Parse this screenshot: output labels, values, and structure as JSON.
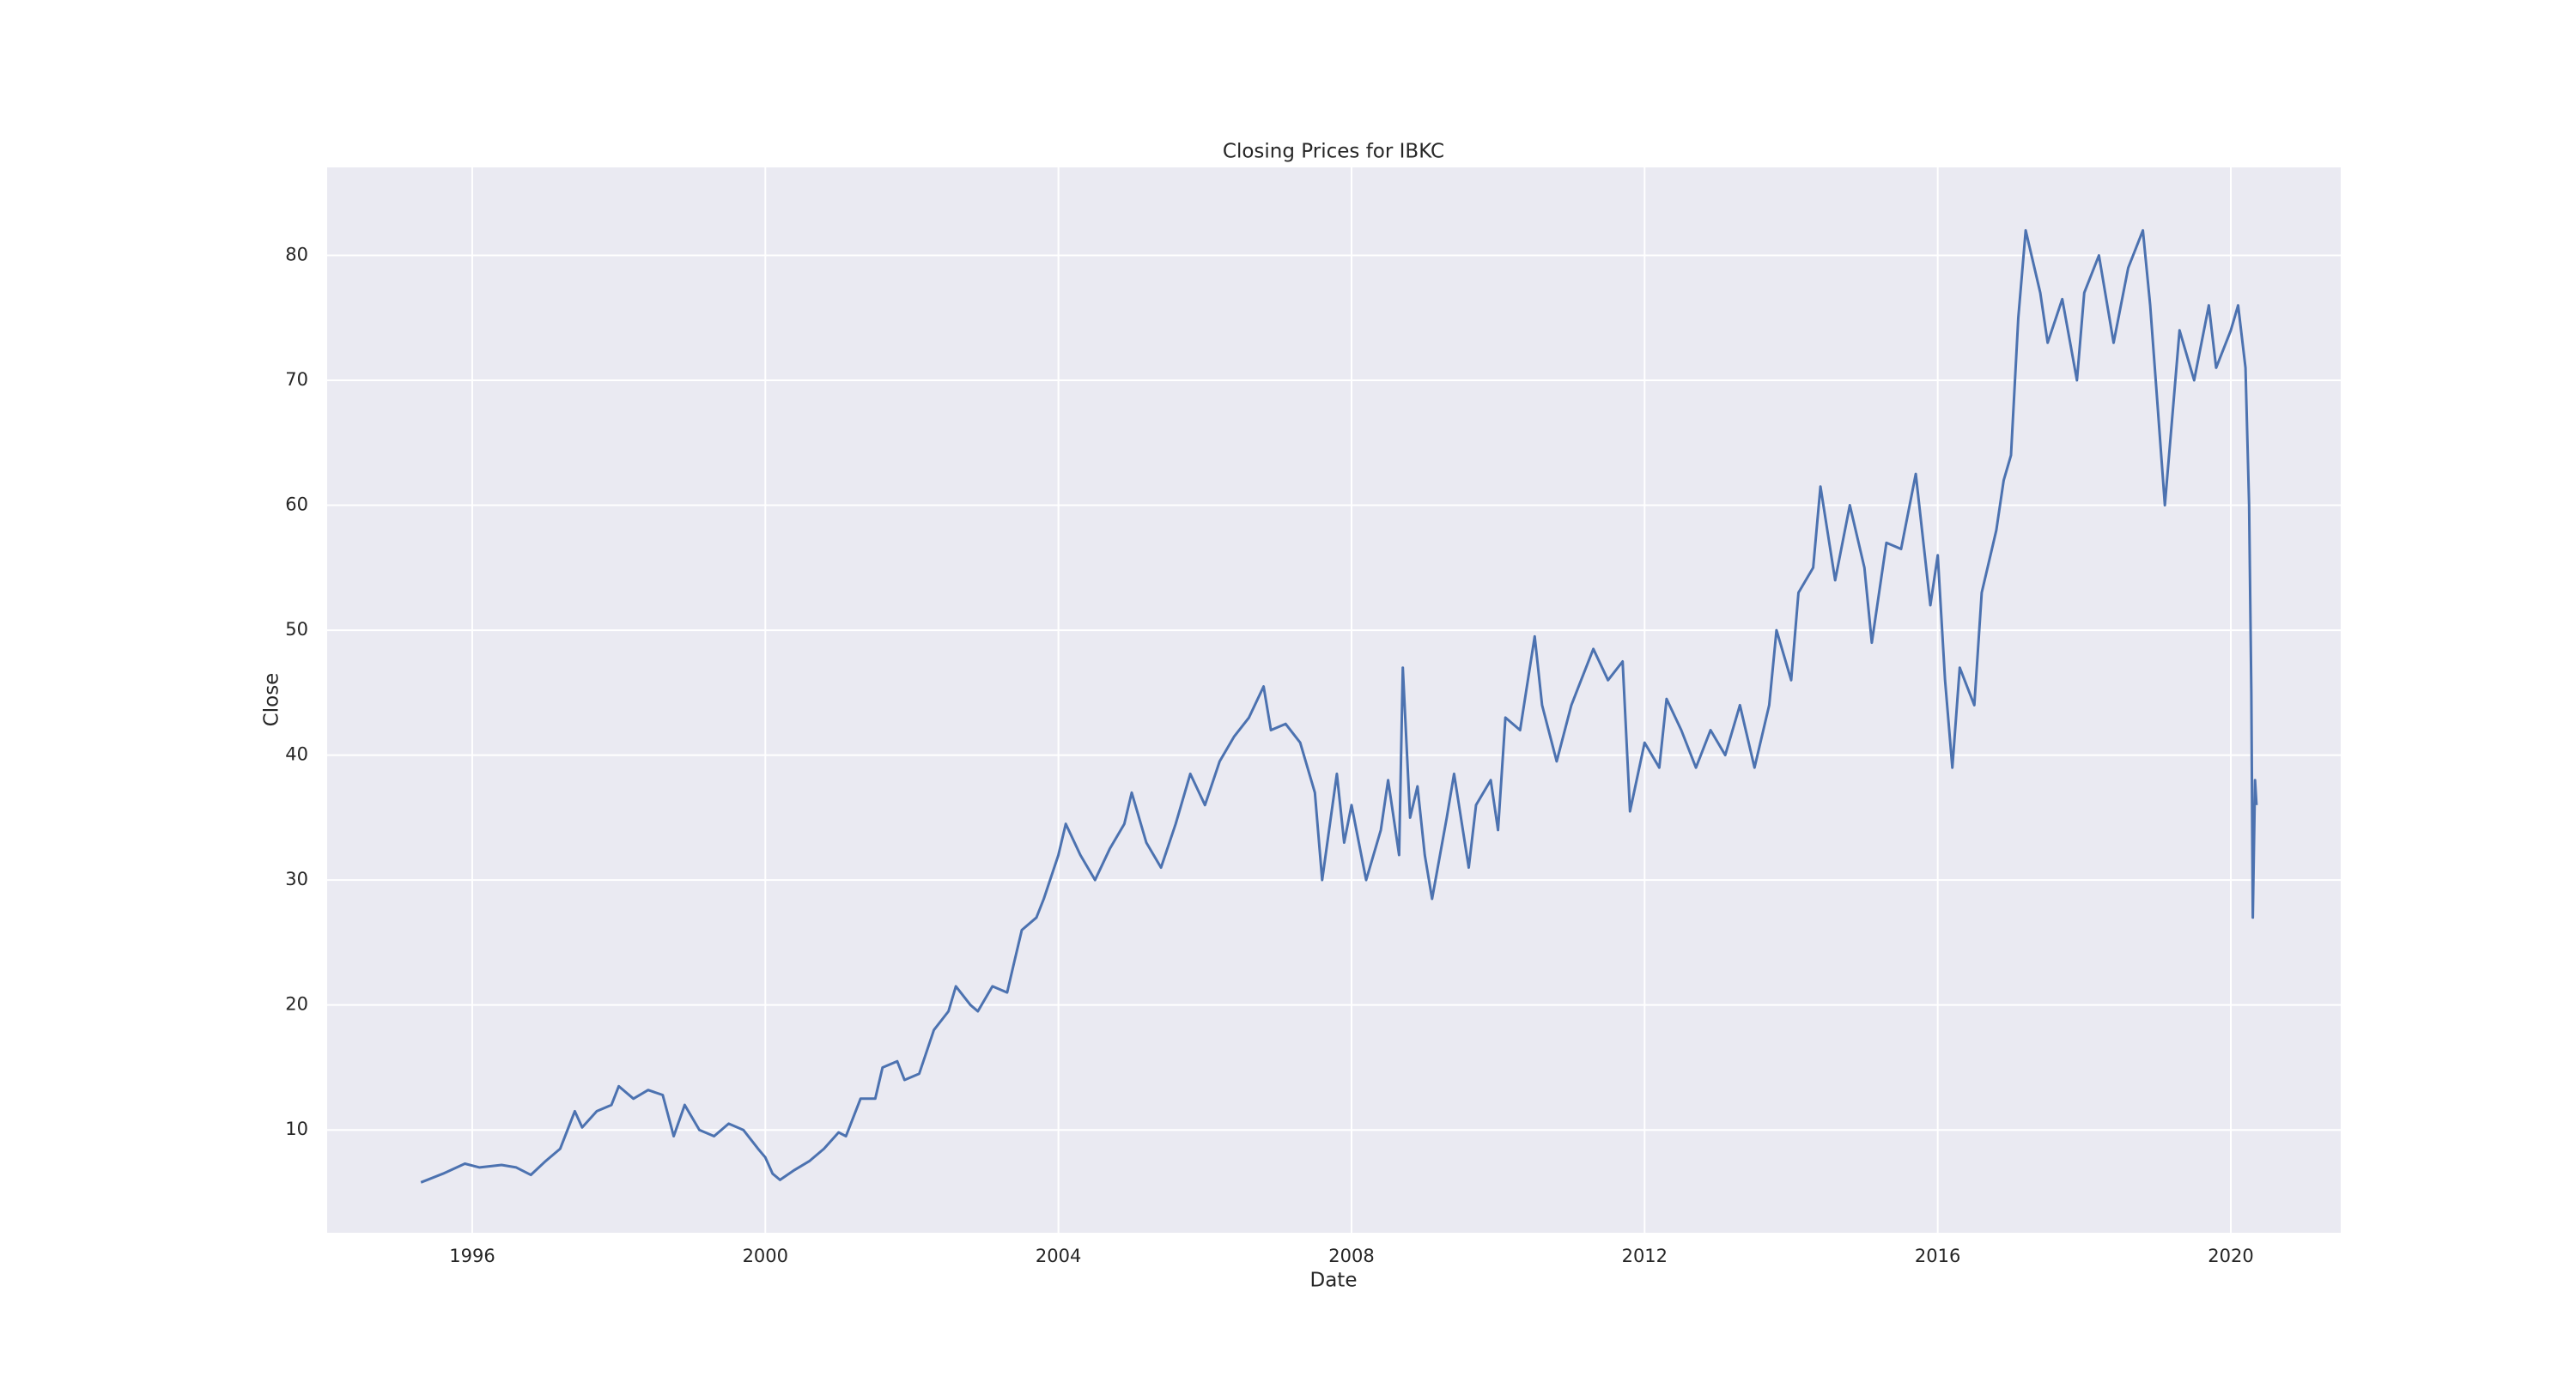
{
  "chart_data": {
    "type": "line",
    "title": "Closing Prices for IBKC",
    "x_label": "Date",
    "y_label": "Close",
    "x": [
      1995.3,
      1995.6,
      1995.9,
      1996.1,
      1996.4,
      1996.6,
      1996.8,
      1997.0,
      1997.2,
      1997.4,
      1997.5,
      1997.7,
      1997.9,
      1998.0,
      1998.2,
      1998.4,
      1998.6,
      1998.75,
      1998.9,
      1999.1,
      1999.3,
      1999.5,
      1999.7,
      1999.9,
      2000.0,
      2000.1,
      2000.2,
      2000.4,
      2000.6,
      2000.8,
      2001.0,
      2001.1,
      2001.3,
      2001.5,
      2001.6,
      2001.8,
      2001.9,
      2002.1,
      2002.3,
      2002.5,
      2002.6,
      2002.8,
      2002.9,
      2003.1,
      2003.3,
      2003.4,
      2003.5,
      2003.7,
      2003.8,
      2004.0,
      2004.1,
      2004.3,
      2004.5,
      2004.7,
      2004.9,
      2005.0,
      2005.2,
      2005.4,
      2005.6,
      2005.8,
      2006.0,
      2006.2,
      2006.4,
      2006.6,
      2006.8,
      2006.9,
      2007.1,
      2007.3,
      2007.5,
      2007.6,
      2007.8,
      2007.9,
      2008.0,
      2008.2,
      2008.4,
      2008.5,
      2008.65,
      2008.7,
      2008.8,
      2008.9,
      2009.0,
      2009.1,
      2009.3,
      2009.4,
      2009.6,
      2009.7,
      2009.9,
      2010.0,
      2010.1,
      2010.3,
      2010.5,
      2010.6,
      2010.8,
      2011.0,
      2011.1,
      2011.3,
      2011.5,
      2011.7,
      2011.8,
      2012.0,
      2012.2,
      2012.3,
      2012.5,
      2012.7,
      2012.9,
      2013.1,
      2013.3,
      2013.5,
      2013.7,
      2013.8,
      2014.0,
      2014.1,
      2014.3,
      2014.4,
      2014.6,
      2014.8,
      2015.0,
      2015.1,
      2015.3,
      2015.5,
      2015.7,
      2015.9,
      2016.0,
      2016.1,
      2016.2,
      2016.3,
      2016.5,
      2016.6,
      2016.8,
      2016.9,
      2017.0,
      2017.1,
      2017.2,
      2017.4,
      2017.5,
      2017.7,
      2017.9,
      2018.0,
      2018.2,
      2018.4,
      2018.6,
      2018.8,
      2018.9,
      2019.0,
      2019.1,
      2019.3,
      2019.5,
      2019.7,
      2019.8,
      2020.0,
      2020.1,
      2020.2,
      2020.25,
      2020.28,
      2020.3,
      2020.33,
      2020.35
    ],
    "values": [
      5.8,
      6.5,
      7.3,
      7.0,
      7.2,
      7.0,
      6.4,
      7.5,
      8.5,
      11.5,
      10.2,
      11.5,
      12.0,
      13.5,
      12.5,
      13.2,
      12.8,
      9.5,
      12.0,
      10.0,
      9.5,
      10.5,
      10.0,
      8.5,
      7.8,
      6.5,
      6.0,
      6.8,
      7.5,
      8.5,
      9.8,
      9.5,
      12.5,
      12.5,
      15.0,
      15.5,
      14.0,
      14.5,
      18.0,
      19.5,
      21.5,
      20.0,
      19.5,
      21.5,
      21.0,
      23.5,
      26.0,
      27.0,
      28.5,
      32.0,
      34.5,
      32.0,
      30.0,
      32.5,
      34.5,
      37.0,
      33.0,
      31.0,
      34.5,
      38.5,
      36.0,
      39.5,
      41.5,
      43.0,
      45.5,
      42.0,
      42.5,
      41.0,
      37.0,
      30.0,
      38.5,
      33.0,
      36.0,
      30.0,
      34.0,
      38.0,
      32.0,
      47.0,
      35.0,
      37.5,
      32.0,
      28.5,
      35.0,
      38.5,
      31.0,
      36.0,
      38.0,
      34.0,
      43.0,
      42.0,
      49.5,
      44.0,
      39.5,
      44.0,
      45.5,
      48.5,
      46.0,
      47.5,
      35.5,
      41.0,
      39.0,
      44.5,
      42.0,
      39.0,
      42.0,
      40.0,
      44.0,
      39.0,
      44.0,
      50.0,
      46.0,
      53.0,
      55.0,
      61.5,
      54.0,
      60.0,
      55.0,
      49.0,
      57.0,
      56.5,
      62.5,
      52.0,
      56.0,
      46.0,
      39.0,
      47.0,
      44.0,
      53.0,
      58.0,
      62.0,
      64.0,
      75.0,
      82.0,
      77.0,
      73.0,
      76.5,
      70.0,
      77.0,
      80.0,
      73.0,
      79.0,
      82.0,
      76.0,
      68.0,
      60.0,
      74.0,
      70.0,
      76.0,
      71.0,
      74.0,
      76.0,
      71.0,
      60.0,
      45.0,
      27.0,
      38.0,
      36.0
    ],
    "color": "#4c72b0",
    "xlim": [
      1994.02,
      2021.5
    ],
    "xticks": [
      1996,
      2000,
      2004,
      2008,
      2012,
      2016,
      2020
    ],
    "ylim": [
      1.77,
      87.04
    ],
    "yticks": [
      10,
      20,
      30,
      40,
      50,
      60,
      70,
      80
    ],
    "grid": true
  }
}
